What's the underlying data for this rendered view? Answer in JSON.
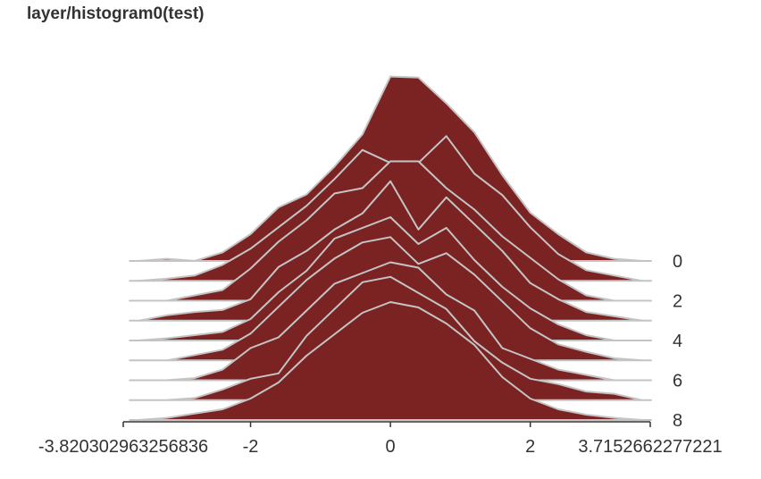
{
  "title": "layer/histogram0(test)",
  "chart_data": {
    "type": "area",
    "title": "layer/histogram0(test)",
    "x_ticks": [
      "-3.820302963256836",
      "-2",
      "0",
      "2",
      "3.7152662277221"
    ],
    "x_tick_values": [
      -3.820302963256836,
      -2,
      0,
      2,
      3.7152662277221
    ],
    "xlim": [
      -3.820302963256836,
      3.7152662277221
    ],
    "y_ticks": [
      "0",
      "2",
      "4",
      "6",
      "8"
    ],
    "y_tick_values": [
      0,
      2,
      4,
      6,
      8
    ],
    "ylim": [
      0,
      8
    ],
    "colors": {
      "fill": "#7b2323",
      "stroke": "#c4c4c4",
      "axis": "#333333"
    },
    "series": [
      {
        "step": 0,
        "x": [
          -3.6,
          -3.2,
          -2.8,
          -2.4,
          -2.0,
          -1.6,
          -1.2,
          -0.8,
          -0.4,
          0.0,
          0.4,
          0.8,
          1.2,
          1.6,
          2.0,
          2.4,
          2.8,
          3.2,
          3.6
        ],
        "values": [
          0.0,
          0.02,
          0.0,
          0.08,
          0.25,
          0.5,
          0.62,
          0.88,
          1.18,
          1.72,
          1.71,
          1.47,
          1.2,
          0.8,
          0.45,
          0.25,
          0.08,
          0.02,
          0.0
        ]
      },
      {
        "step": 1,
        "x": [
          -3.6,
          -3.2,
          -2.8,
          -2.4,
          -2.0,
          -1.6,
          -1.2,
          -0.8,
          -0.4,
          0.0,
          0.4,
          0.8,
          1.2,
          1.6,
          2.0,
          2.4,
          2.8,
          3.2,
          3.6
        ],
        "values": [
          0.0,
          0.02,
          0.05,
          0.15,
          0.3,
          0.5,
          0.7,
          0.95,
          1.22,
          1.1,
          1.1,
          1.35,
          1.0,
          0.8,
          0.5,
          0.25,
          0.1,
          0.05,
          0.0
        ]
      },
      {
        "step": 2,
        "x": [
          -3.6,
          -3.2,
          -2.8,
          -2.4,
          -2.0,
          -1.6,
          -1.2,
          -0.8,
          -0.4,
          0.0,
          0.4,
          0.8,
          1.2,
          1.6,
          2.0,
          2.4,
          2.8,
          3.2,
          3.6
        ],
        "values": [
          0.0,
          0.0,
          0.05,
          0.1,
          0.3,
          0.55,
          0.75,
          1.0,
          1.05,
          1.3,
          1.3,
          1.05,
          0.85,
          0.6,
          0.4,
          0.2,
          0.05,
          0.0,
          0.0
        ]
      },
      {
        "step": 3,
        "x": [
          -3.6,
          -3.2,
          -2.8,
          -2.4,
          -2.0,
          -1.6,
          -1.2,
          -0.8,
          -0.4,
          0.0,
          0.4,
          0.8,
          1.2,
          1.6,
          2.0,
          2.4,
          2.8,
          3.2,
          3.6
        ],
        "values": [
          0.0,
          0.05,
          0.08,
          0.1,
          0.2,
          0.5,
          0.65,
          0.85,
          1.0,
          1.3,
          0.85,
          1.15,
          0.9,
          0.65,
          0.35,
          0.2,
          0.08,
          0.04,
          0.0
        ]
      },
      {
        "step": 4,
        "x": [
          -3.6,
          -3.2,
          -2.8,
          -2.4,
          -2.0,
          -1.6,
          -1.2,
          -0.8,
          -0.4,
          0.0,
          0.4,
          0.8,
          1.2,
          1.6,
          2.0,
          2.4,
          2.8,
          3.2,
          3.6
        ],
        "values": [
          0.0,
          0.02,
          0.05,
          0.08,
          0.2,
          0.45,
          0.65,
          0.95,
          1.05,
          1.15,
          0.9,
          1.05,
          0.75,
          0.5,
          0.3,
          0.15,
          0.05,
          0.0,
          0.0
        ]
      },
      {
        "step": 5,
        "x": [
          -3.6,
          -3.2,
          -2.8,
          -2.4,
          -2.0,
          -1.6,
          -1.2,
          -0.8,
          -0.4,
          0.0,
          0.4,
          0.8,
          1.2,
          1.6,
          2.0,
          2.4,
          2.8,
          3.2,
          3.6
        ],
        "values": [
          0.0,
          0.0,
          0.05,
          0.1,
          0.25,
          0.5,
          0.75,
          0.95,
          1.1,
          1.15,
          0.9,
          1.0,
          0.8,
          0.55,
          0.3,
          0.15,
          0.08,
          0.02,
          0.0
        ]
      },
      {
        "step": 6,
        "x": [
          -3.6,
          -3.2,
          -2.8,
          -2.4,
          -2.0,
          -1.6,
          -1.2,
          -0.8,
          -0.4,
          0.0,
          0.4,
          0.8,
          1.2,
          1.6,
          2.0,
          2.4,
          2.8,
          3.2,
          3.6
        ],
        "values": [
          0.0,
          0.0,
          0.02,
          0.1,
          0.3,
          0.4,
          0.65,
          0.9,
          1.0,
          1.1,
          1.05,
          0.8,
          0.65,
          0.3,
          0.2,
          0.1,
          0.05,
          0.0,
          0.0
        ]
      },
      {
        "step": 7,
        "x": [
          -3.6,
          -3.2,
          -2.8,
          -2.4,
          -2.0,
          -1.6,
          -1.2,
          -0.8,
          -0.4,
          0.0,
          0.4,
          0.8,
          1.2,
          1.6,
          2.0,
          2.4,
          2.8,
          3.2,
          3.6
        ],
        "values": [
          0.0,
          0.0,
          0.02,
          0.1,
          0.2,
          0.25,
          0.6,
          0.85,
          1.1,
          1.15,
          1.0,
          0.85,
          0.55,
          0.35,
          0.2,
          0.15,
          0.08,
          0.06,
          0.0
        ]
      },
      {
        "step": 8,
        "x": [
          -3.6,
          -3.2,
          -2.8,
          -2.4,
          -2.0,
          -1.6,
          -1.2,
          -0.8,
          -0.4,
          0.0,
          0.4,
          0.8,
          1.2,
          1.6,
          2.0,
          2.4,
          2.8,
          3.2,
          3.6
        ],
        "values": [
          0.0,
          0.02,
          0.06,
          0.1,
          0.2,
          0.35,
          0.6,
          0.8,
          1.0,
          1.1,
          1.05,
          0.9,
          0.7,
          0.4,
          0.2,
          0.1,
          0.05,
          0.02,
          0.0
        ]
      }
    ]
  }
}
